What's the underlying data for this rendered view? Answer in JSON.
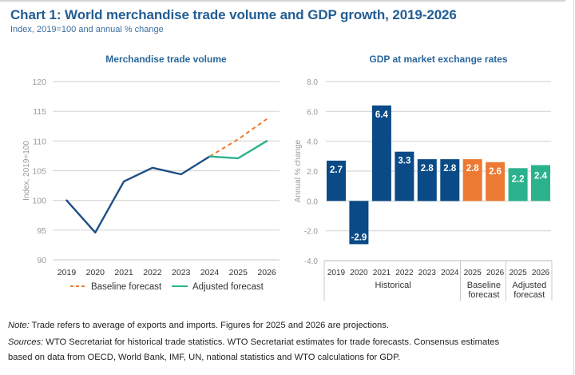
{
  "header": {
    "title": "Chart 1: World merchandise trade volume and GDP growth, 2019-2026",
    "subtitle": "Index, 2019=100 and annual % change"
  },
  "chart_data": [
    {
      "type": "line",
      "title": "Merchandise trade volume",
      "xlabel": "",
      "ylabel": "Index, 2019=100",
      "x": [
        "2019",
        "2020",
        "2021",
        "2022",
        "2023",
        "2024",
        "2025",
        "2026"
      ],
      "ylim": [
        90,
        120
      ],
      "yticks": [
        90,
        95,
        100,
        105,
        110,
        115,
        120
      ],
      "grid": true,
      "legend_position": "bottom",
      "series": [
        {
          "name": "Historical",
          "style": "solid",
          "color": "#1f4e84",
          "x": [
            "2019",
            "2020",
            "2021",
            "2022",
            "2023",
            "2024"
          ],
          "values": [
            100.0,
            94.6,
            103.2,
            105.5,
            104.4,
            107.4
          ]
        },
        {
          "name": "Baseline forecast",
          "style": "dashed",
          "color": "#ec7a32",
          "x": [
            "2024",
            "2025",
            "2026"
          ],
          "values": [
            107.4,
            110.3,
            113.7
          ]
        },
        {
          "name": "Adjusted forecast",
          "style": "solid",
          "color": "#2bb28d",
          "x": [
            "2024",
            "2025",
            "2026"
          ],
          "values": [
            107.4,
            107.1,
            110.0
          ]
        }
      ],
      "legend": [
        {
          "label": "Baseline forecast",
          "style": "dashed",
          "color": "#ec7a32"
        },
        {
          "label": "Adjusted forecast",
          "style": "solid",
          "color": "#2bb28d"
        }
      ]
    },
    {
      "type": "bar",
      "title": "GDP at market exchange rates",
      "xlabel": "",
      "ylabel": "Annual % change",
      "ylim": [
        -4.0,
        8.0
      ],
      "yticks": [
        "-4.0",
        "-2.0",
        "0.0",
        "2.0",
        "4.0",
        "6.0",
        "8.0"
      ],
      "grid": true,
      "categories": [
        "2019",
        "2020",
        "2021",
        "2022",
        "2023",
        "2024",
        "2025",
        "2026",
        "2025",
        "2026"
      ],
      "values": [
        2.7,
        -2.9,
        6.4,
        3.3,
        2.8,
        2.8,
        2.8,
        2.6,
        2.2,
        2.4
      ],
      "data_labels": [
        "2.7",
        "-2.9",
        "6.4",
        "3.3",
        "2.8",
        "2.8",
        "2.8",
        "2.6",
        "2.2",
        "2.4"
      ],
      "groups": [
        {
          "label_lines": [
            "Historical"
          ],
          "count": 6,
          "color": "#0a4a86"
        },
        {
          "label_lines": [
            "Baseline",
            "forecast"
          ],
          "count": 2,
          "color": "#ec7a32"
        },
        {
          "label_lines": [
            "Adjusted",
            "forecast"
          ],
          "count": 2,
          "color": "#2bb28d"
        }
      ]
    }
  ],
  "footer": {
    "note_label": "Note:",
    "note_text": " Trade refers to average of exports and imports. Figures for 2025 and 2026 are projections.",
    "sources_label": "Sources:",
    "sources_line1": " WTO Secretariat for historical trade statistics. WTO Secretariat estimates for trade forecasts. Consensus estimates",
    "sources_line2": "based on data from OECD, World Bank, IMF, UN, national statistics and WTO calculations for GDP."
  }
}
